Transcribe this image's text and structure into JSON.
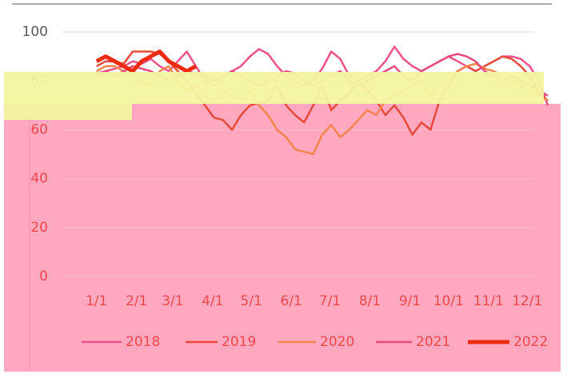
{
  "chart_data": {
    "type": "line",
    "x": [
      0,
      7,
      14,
      21,
      28,
      35,
      42,
      49,
      56,
      63,
      70,
      77,
      84,
      91,
      98,
      105,
      112,
      119,
      126,
      133,
      140,
      147,
      154,
      161,
      168,
      175,
      182,
      189,
      196,
      203,
      210,
      217,
      224,
      231,
      238,
      245,
      252,
      259,
      266,
      273,
      280,
      287,
      294,
      301,
      308,
      315,
      322,
      329,
      336,
      343,
      350
    ],
    "xlim": [
      -16,
      350
    ],
    "xticks": [
      {
        "value": 0,
        "label": "1/1"
      },
      {
        "value": 31,
        "label": "2/1"
      },
      {
        "value": 59,
        "label": "3/1"
      },
      {
        "value": 90,
        "label": "4/1"
      },
      {
        "value": 120,
        "label": "5/1"
      },
      {
        "value": 151,
        "label": "6/1"
      },
      {
        "value": 181,
        "label": "7/1"
      },
      {
        "value": 212,
        "label": "8/1"
      },
      {
        "value": 243,
        "label": "9/1"
      },
      {
        "value": 273,
        "label": "10/1"
      },
      {
        "value": 304,
        "label": "11/1"
      },
      {
        "value": 334,
        "label": "12/1"
      }
    ],
    "ylim": [
      0,
      100
    ],
    "yticks": [
      0,
      20,
      40,
      60,
      80,
      100
    ],
    "grid": true,
    "legend": "bottom",
    "series": [
      {
        "name": "2018",
        "color": "#f0508a",
        "width": 2.5,
        "values": [
          82,
          84,
          85,
          86,
          88,
          87,
          89,
          86,
          84,
          88,
          92,
          86,
          80,
          78,
          82,
          84,
          86,
          90,
          93,
          91,
          86,
          82,
          80,
          78,
          80,
          85,
          92,
          89,
          82,
          80,
          82,
          84,
          88,
          94,
          89,
          86,
          84,
          86,
          88,
          90,
          88,
          86,
          84,
          86,
          88,
          90,
          90,
          89,
          86,
          80,
          70
        ]
      },
      {
        "name": "2019",
        "color": "#e84a3a",
        "width": 2.5,
        "values": [
          86,
          88,
          88,
          87,
          92,
          92,
          92,
          91,
          88,
          84,
          80,
          75,
          70,
          65,
          64,
          60,
          66,
          70,
          71,
          72,
          78,
          70,
          66,
          63,
          70,
          78,
          68,
          72,
          75,
          80,
          76,
          72,
          66,
          70,
          65,
          58,
          63,
          60,
          72,
          78,
          84,
          86,
          84,
          86,
          88,
          90,
          89,
          86,
          82,
          75,
          72
        ]
      },
      {
        "name": "2020",
        "color": "#f5844a",
        "width": 2.5,
        "values": [
          84,
          86,
          86,
          84,
          82,
          80,
          78,
          84,
          86,
          80,
          76,
          78,
          74,
          72,
          76,
          74,
          72,
          76,
          70,
          66,
          60,
          57,
          52,
          51,
          50,
          58,
          62,
          57,
          60,
          64,
          68,
          66,
          72,
          74,
          76,
          78,
          80,
          74,
          78,
          80,
          84,
          86,
          87,
          85,
          84,
          82,
          80,
          78,
          76,
          74,
          72
        ]
      },
      {
        "name": "2021",
        "color": "#ea4a7a",
        "width": 2.5,
        "values": [
          83,
          84,
          82,
          84,
          86,
          85,
          84,
          82,
          80,
          82,
          84,
          83,
          82,
          80,
          82,
          84,
          82,
          80,
          78,
          80,
          82,
          84,
          83,
          80,
          78,
          80,
          82,
          84,
          80,
          78,
          80,
          82,
          84,
          86,
          82,
          80,
          84,
          86,
          88,
          90,
          91,
          90,
          88,
          84,
          82,
          80,
          82,
          80,
          78,
          76,
          74
        ]
      },
      {
        "name": "2022",
        "color": "#ee2a10",
        "width": 5,
        "values": [
          88,
          90,
          88,
          86,
          84,
          88,
          90,
          92,
          88,
          86,
          84,
          86,
          null,
          null,
          null,
          null,
          null,
          null,
          null,
          null,
          null,
          null,
          null,
          null,
          null,
          null,
          null,
          null,
          null,
          null,
          null,
          null,
          null,
          null,
          null,
          null,
          null,
          null,
          null,
          null,
          null,
          null,
          null,
          null,
          null,
          null,
          null,
          null,
          null,
          null,
          null
        ]
      }
    ]
  }
}
